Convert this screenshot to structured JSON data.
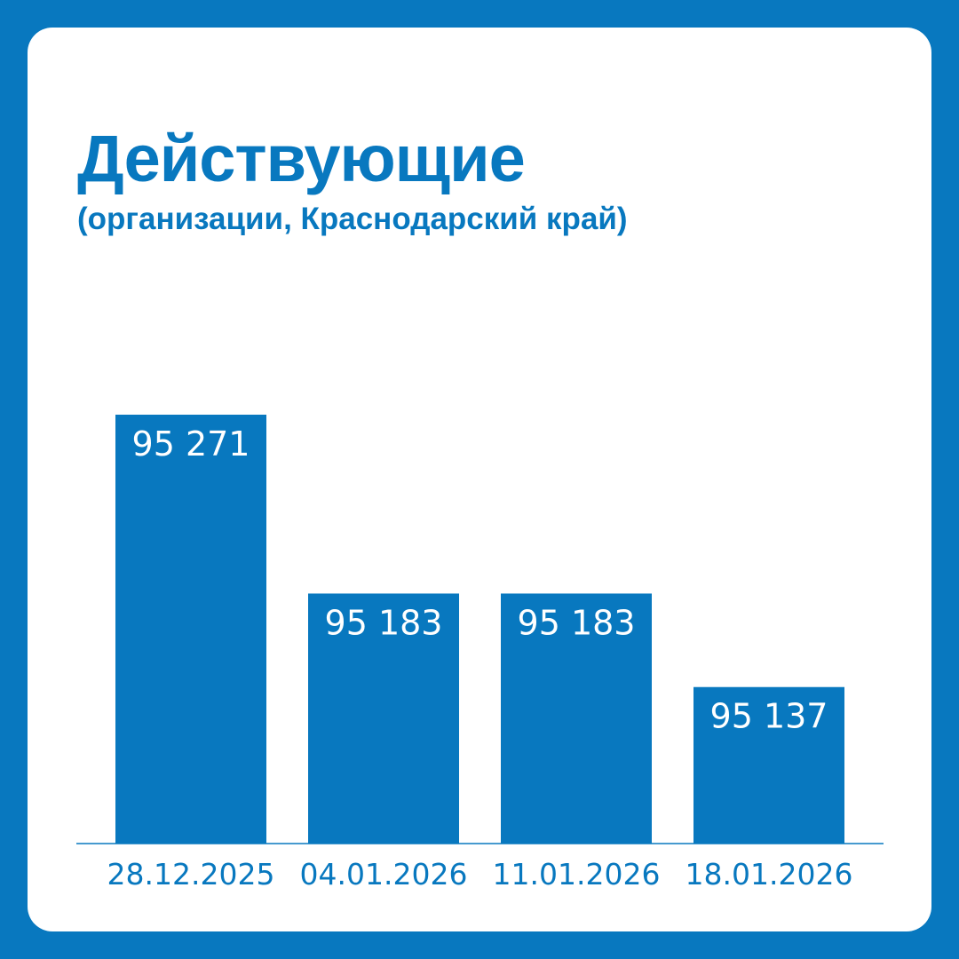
{
  "colors": {
    "frame": "#0878BF",
    "card": "#FFFFFF",
    "accent": "#0878BF",
    "bar": "#0878BF",
    "bar_label": "#FFFFFF"
  },
  "header": {
    "title": "Действующие",
    "subtitle": "(организации, Краснодарский край)"
  },
  "chart_data": {
    "type": "bar",
    "title": "Действующие",
    "subtitle": "(организации, Краснодарский край)",
    "categories": [
      "28.12.2025",
      "04.01.2026",
      "11.01.2026",
      "18.01.2026"
    ],
    "values": [
      95271,
      95183,
      95183,
      95137
    ],
    "value_labels": [
      "95 271",
      "95 183",
      "95 183",
      "95 137"
    ],
    "xlabel": "",
    "ylabel": "",
    "ylim": [
      95060,
      95300
    ],
    "grid": false,
    "legend": "none"
  }
}
